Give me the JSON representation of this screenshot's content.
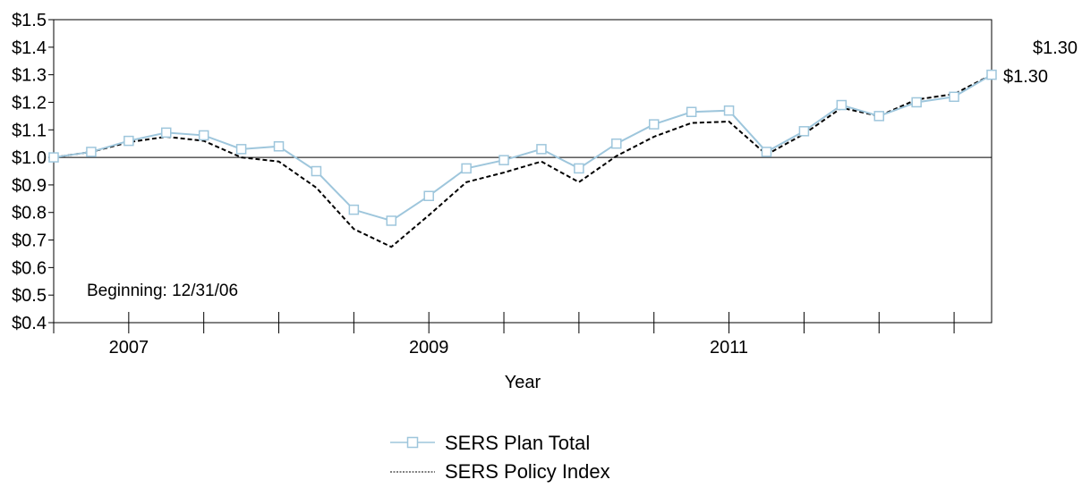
{
  "chart_data": {
    "type": "line",
    "title": "",
    "xlabel": "Year",
    "ylabel": "",
    "xlim": [
      0,
      25
    ],
    "ylim": [
      0.4,
      1.5
    ],
    "y_ticks": [
      0.4,
      0.5,
      0.6,
      0.7,
      0.8,
      0.9,
      1.0,
      1.1,
      1.2,
      1.3,
      1.4,
      1.5
    ],
    "y_tick_labels": [
      "$0.4",
      "$0.5",
      "$0.6",
      "$0.7",
      "$0.8",
      "$0.9",
      "$1.0",
      "$1.1",
      "$1.2",
      "$1.3",
      "$1.4",
      "$1.5"
    ],
    "x_tick_labels": [
      {
        "x": 2,
        "label": "2007"
      },
      {
        "x": 10,
        "label": "2009"
      },
      {
        "x": 18,
        "label": "2011"
      }
    ],
    "x_minor_ticks": [
      0,
      2,
      4,
      6,
      8,
      10,
      12,
      14,
      16,
      18,
      20,
      22,
      24
    ],
    "reference_line": 1.0,
    "grid": false,
    "annotation": "Beginning: 12/31/06",
    "end_labels": {
      "plan": "$1.30",
      "index": "$1.30"
    },
    "legend_position": "bottom-center",
    "series": [
      {
        "name": "SERS Plan Total",
        "color": "#9ec6dc",
        "marker": "square",
        "style": "solid",
        "values": [
          1.0,
          1.02,
          1.06,
          1.09,
          1.08,
          1.03,
          1.04,
          0.95,
          0.81,
          0.77,
          0.86,
          0.96,
          0.99,
          1.03,
          0.96,
          1.05,
          1.12,
          1.165,
          1.17,
          1.02,
          1.095,
          1.19,
          1.15,
          1.2,
          1.22,
          1.3
        ]
      },
      {
        "name": "SERS Policy Index",
        "color": "#000000",
        "marker": "none",
        "style": "dashed",
        "values": [
          1.0,
          1.02,
          1.055,
          1.075,
          1.06,
          1.0,
          0.985,
          0.89,
          0.74,
          0.675,
          0.79,
          0.91,
          0.945,
          0.985,
          0.91,
          1.005,
          1.075,
          1.125,
          1.13,
          1.01,
          1.085,
          1.18,
          1.15,
          1.21,
          1.23,
          1.3
        ]
      }
    ]
  }
}
